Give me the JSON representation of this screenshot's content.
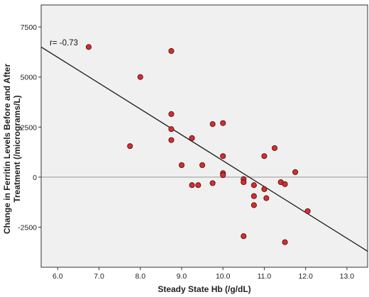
{
  "chart_data": {
    "type": "scatter",
    "title": "",
    "xlabel": "Steady State Hb (/g/dL)",
    "ylabel": "Change in Ferritin Levels Before and After Treatment (/micrograms/L)",
    "ylabel_lines": [
      "Change in Ferritin Levels Before and After",
      "Treatment (/micrograms/L)"
    ],
    "xlim": [
      5.6,
      13.5
    ],
    "ylim": [
      -4500,
      8600
    ],
    "x_ticks": [
      6.0,
      7.0,
      8.0,
      9.0,
      10.0,
      11.0,
      12.0,
      13.0
    ],
    "x_tick_labels": [
      "6.0",
      "7.0",
      "8.0",
      "9.0",
      "10.0",
      "11.0",
      "12.0",
      "13.0"
    ],
    "y_ticks": [
      -2500,
      0,
      2500,
      5000,
      7500
    ],
    "y_tick_labels": [
      "-2500",
      "0",
      "2500",
      "5000",
      "7500"
    ],
    "annotation": "r= -0.73",
    "reference_line_y": 0,
    "fit_line": {
      "x": [
        5.6,
        13.5
      ],
      "y": [
        6500,
        -3700
      ]
    },
    "grid": false,
    "points": [
      {
        "x": 6.75,
        "y": 6500
      },
      {
        "x": 7.75,
        "y": 1550
      },
      {
        "x": 8.0,
        "y": 5000
      },
      {
        "x": 8.75,
        "y": 6300
      },
      {
        "x": 8.75,
        "y": 3150
      },
      {
        "x": 8.75,
        "y": 2400
      },
      {
        "x": 8.75,
        "y": 1850
      },
      {
        "x": 9.0,
        "y": 600
      },
      {
        "x": 9.25,
        "y": 1950
      },
      {
        "x": 9.25,
        "y": -400
      },
      {
        "x": 9.4,
        "y": -400
      },
      {
        "x": 9.5,
        "y": 600
      },
      {
        "x": 9.75,
        "y": 2650
      },
      {
        "x": 9.75,
        "y": -300
      },
      {
        "x": 10.0,
        "y": 2700
      },
      {
        "x": 10.0,
        "y": 1050
      },
      {
        "x": 10.0,
        "y": 200
      },
      {
        "x": 10.0,
        "y": 100
      },
      {
        "x": 10.5,
        "y": -100
      },
      {
        "x": 10.5,
        "y": -250
      },
      {
        "x": 10.5,
        "y": -2950
      },
      {
        "x": 10.75,
        "y": -400
      },
      {
        "x": 10.75,
        "y": -950
      },
      {
        "x": 10.75,
        "y": -1400
      },
      {
        "x": 11.0,
        "y": 1050
      },
      {
        "x": 11.0,
        "y": -600
      },
      {
        "x": 11.05,
        "y": -1050
      },
      {
        "x": 11.25,
        "y": 1450
      },
      {
        "x": 11.4,
        "y": -250
      },
      {
        "x": 11.5,
        "y": -350
      },
      {
        "x": 11.5,
        "y": -3250
      },
      {
        "x": 11.75,
        "y": 250
      },
      {
        "x": 12.05,
        "y": -1700
      }
    ],
    "colors": {
      "plot_background": "#f0f0f0",
      "point_fill": "#d32f2f",
      "point_stroke": "#5a0f0f",
      "fit_line": "#1a1a1a",
      "reference_line": "#a8a8a8",
      "frame": "#333333"
    }
  }
}
